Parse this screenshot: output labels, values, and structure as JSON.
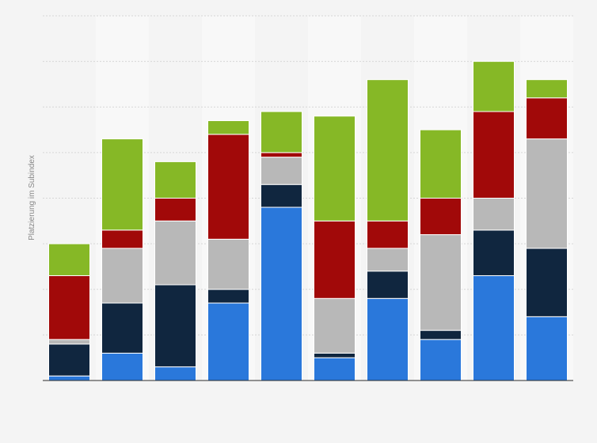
{
  "chart_data": {
    "type": "bar",
    "stacked": true,
    "ylabel": "Platzierung im Subindex",
    "ylim": [
      0,
      80
    ],
    "grid": true,
    "colors": [
      "#2a78db",
      "#10263f",
      "#b8b8b8",
      "#a10909",
      "#86b826"
    ],
    "categories": [
      "",
      "",
      "",
      "",
      "",
      "",
      "",
      "",
      "",
      ""
    ],
    "series": [
      {
        "values": [
          1,
          6,
          3,
          17,
          38,
          5,
          18,
          9,
          23,
          14
        ]
      },
      {
        "values": [
          7,
          11,
          18,
          3,
          5,
          1,
          6,
          2,
          10,
          15
        ]
      },
      {
        "values": [
          1,
          12,
          14,
          11,
          6,
          12,
          5,
          21,
          7,
          24
        ]
      },
      {
        "values": [
          14,
          4,
          5,
          23,
          1,
          17,
          6,
          8,
          19,
          9
        ]
      },
      {
        "values": [
          7,
          20,
          8,
          3,
          9,
          23,
          31,
          15,
          11,
          4
        ]
      }
    ]
  }
}
